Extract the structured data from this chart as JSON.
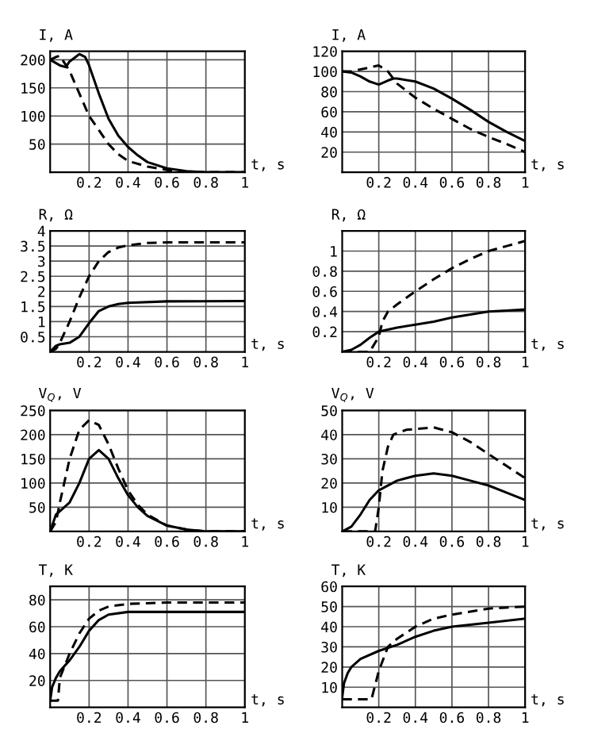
{
  "chart_data": [
    {
      "type": "line",
      "ylabel": "I, A",
      "xlabel": "t, s",
      "xlim": [
        0,
        1
      ],
      "xticks": [
        0.2,
        0.4,
        0.6,
        0.8,
        1
      ],
      "ylim": [
        0,
        215
      ],
      "yticks": [
        50,
        100,
        150,
        200
      ],
      "grid": true,
      "series": [
        {
          "color": "#000000",
          "line_style": "solid",
          "x": [
            0,
            0.05,
            0.08,
            0.1,
            0.15,
            0.18,
            0.2,
            0.25,
            0.3,
            0.35,
            0.4,
            0.45,
            0.5,
            0.6,
            0.7,
            0.8,
            1
          ],
          "values": [
            200,
            190,
            187,
            197,
            210,
            205,
            190,
            140,
            95,
            65,
            45,
            30,
            18,
            7,
            2,
            0,
            0
          ]
        },
        {
          "color": "#000000",
          "line_style": "dashed",
          "x": [
            0,
            0.03,
            0.05,
            0.1,
            0.15,
            0.2,
            0.25,
            0.3,
            0.35,
            0.4,
            0.5,
            0.6,
            0.7,
            0.8,
            1
          ],
          "values": [
            200,
            205,
            207,
            180,
            140,
            100,
            75,
            50,
            32,
            20,
            10,
            4,
            1,
            0,
            0
          ]
        }
      ]
    },
    {
      "type": "line",
      "ylabel": "I, A",
      "xlabel": "t, s",
      "xlim": [
        0,
        1
      ],
      "xticks": [
        0.2,
        0.4,
        0.6,
        0.8,
        1
      ],
      "ylim": [
        0,
        120
      ],
      "yticks": [
        20,
        40,
        60,
        80,
        100,
        120
      ],
      "grid": true,
      "series": [
        {
          "color": "#000000",
          "line_style": "solid",
          "x": [
            0,
            0.05,
            0.1,
            0.15,
            0.2,
            0.25,
            0.28,
            0.3,
            0.4,
            0.5,
            0.6,
            0.7,
            0.8,
            0.9,
            1
          ],
          "values": [
            100,
            99,
            95,
            90,
            87,
            91,
            93,
            93,
            90,
            83,
            73,
            62,
            50,
            40,
            31
          ]
        },
        {
          "color": "#000000",
          "line_style": "dashed",
          "x": [
            0,
            0.05,
            0.1,
            0.15,
            0.2,
            0.25,
            0.3,
            0.4,
            0.5,
            0.6,
            0.7,
            0.8,
            0.9,
            1
          ],
          "values": [
            100,
            100,
            102,
            104,
            106,
            100,
            88,
            74,
            63,
            53,
            43,
            35,
            28,
            20
          ]
        }
      ]
    },
    {
      "type": "line",
      "ylabel": "R, Ω",
      "xlabel": "t, s",
      "xlim": [
        0,
        1
      ],
      "xticks": [
        0.2,
        0.4,
        0.6,
        0.8,
        1
      ],
      "ylim": [
        0,
        4
      ],
      "yticks": [
        0.5,
        1,
        1.5,
        2,
        2.5,
        3,
        3.5,
        4
      ],
      "grid": true,
      "series": [
        {
          "color": "#000000",
          "line_style": "solid",
          "x": [
            0,
            0.03,
            0.05,
            0.1,
            0.15,
            0.2,
            0.25,
            0.3,
            0.35,
            0.4,
            0.6,
            1
          ],
          "values": [
            0,
            0.2,
            0.25,
            0.3,
            0.5,
            0.95,
            1.35,
            1.5,
            1.58,
            1.62,
            1.67,
            1.68
          ]
        },
        {
          "color": "#000000",
          "line_style": "dashed",
          "x": [
            0,
            0.03,
            0.05,
            0.1,
            0.15,
            0.2,
            0.25,
            0.3,
            0.35,
            0.4,
            0.5,
            0.6,
            1
          ],
          "values": [
            0,
            0.1,
            0.3,
            1.0,
            1.8,
            2.5,
            3.0,
            3.3,
            3.45,
            3.52,
            3.6,
            3.62,
            3.62
          ]
        }
      ]
    },
    {
      "type": "line",
      "ylabel": "R, Ω",
      "xlabel": "t, s",
      "xlim": [
        0,
        1
      ],
      "xticks": [
        0.2,
        0.4,
        0.6,
        0.8,
        1
      ],
      "ylim": [
        0,
        1.2
      ],
      "yticks": [
        0.2,
        0.4,
        0.6,
        0.8,
        1,
        {
          "value": 1.2,
          "label": null
        }
      ],
      "grid": true,
      "series": [
        {
          "color": "#000000",
          "line_style": "solid",
          "x": [
            0,
            0.05,
            0.1,
            0.15,
            0.2,
            0.25,
            0.3,
            0.4,
            0.5,
            0.6,
            0.7,
            0.8,
            0.9,
            1
          ],
          "values": [
            0,
            0.02,
            0.07,
            0.14,
            0.2,
            0.22,
            0.24,
            0.27,
            0.3,
            0.34,
            0.37,
            0.4,
            0.41,
            0.42
          ]
        },
        {
          "color": "#000000",
          "line_style": "dashed",
          "x": [
            0,
            0.15,
            0.2,
            0.22,
            0.25,
            0.3,
            0.4,
            0.5,
            0.6,
            0.7,
            0.8,
            0.9,
            1
          ],
          "values": [
            0,
            0,
            0.15,
            0.3,
            0.4,
            0.47,
            0.6,
            0.72,
            0.83,
            0.92,
            1.0,
            1.05,
            1.1
          ]
        }
      ]
    },
    {
      "type": "line",
      "ylabel": "V$_{Q}$, V",
      "xlabel": "t, s",
      "xlim": [
        0,
        1
      ],
      "xticks": [
        0.2,
        0.4,
        0.6,
        0.8,
        1
      ],
      "ylim": [
        0,
        250
      ],
      "yticks": [
        50,
        100,
        150,
        200,
        250
      ],
      "grid": true,
      "series": [
        {
          "color": "#000000",
          "line_style": "solid",
          "x": [
            0,
            0.03,
            0.05,
            0.1,
            0.15,
            0.2,
            0.25,
            0.3,
            0.35,
            0.4,
            0.45,
            0.5,
            0.6,
            0.7,
            0.8,
            1
          ],
          "values": [
            0,
            35,
            42,
            60,
            100,
            150,
            168,
            150,
            110,
            75,
            50,
            32,
            12,
            4,
            0,
            0
          ]
        },
        {
          "color": "#000000",
          "line_style": "dashed",
          "x": [
            0,
            0.03,
            0.05,
            0.1,
            0.15,
            0.2,
            0.25,
            0.3,
            0.35,
            0.4,
            0.45,
            0.5,
            0.6,
            0.7,
            0.8,
            1
          ],
          "values": [
            0,
            20,
            60,
            150,
            210,
            230,
            220,
            180,
            130,
            85,
            55,
            35,
            12,
            4,
            0,
            0
          ]
        }
      ]
    },
    {
      "type": "line",
      "ylabel": "V$_{Q}$, V",
      "xlabel": "t, s",
      "xlim": [
        0,
        1
      ],
      "xticks": [
        0.2,
        0.4,
        0.6,
        0.8,
        1
      ],
      "ylim": [
        0,
        50
      ],
      "yticks": [
        10,
        20,
        30,
        40,
        50
      ],
      "grid": true,
      "series": [
        {
          "color": "#000000",
          "line_style": "solid",
          "x": [
            0,
            0.05,
            0.1,
            0.15,
            0.2,
            0.3,
            0.4,
            0.5,
            0.6,
            0.7,
            0.8,
            0.9,
            1
          ],
          "values": [
            0,
            2,
            7,
            13,
            17,
            21,
            23,
            24,
            23,
            21,
            19,
            16,
            13
          ]
        },
        {
          "color": "#000000",
          "line_style": "dashed",
          "x": [
            0,
            0.18,
            0.2,
            0.22,
            0.25,
            0.28,
            0.35,
            0.5,
            0.6,
            0.7,
            0.8,
            0.9,
            1
          ],
          "values": [
            0,
            0,
            10,
            25,
            35,
            40,
            42,
            43,
            41,
            37,
            32,
            27,
            22
          ]
        }
      ]
    },
    {
      "type": "line",
      "ylabel": "T, K",
      "xlabel": "t, s",
      "xlim": [
        0,
        1
      ],
      "xticks": [
        0.2,
        0.4,
        0.6,
        0.8,
        1
      ],
      "ylim": [
        0,
        90
      ],
      "yticks": [
        20,
        40,
        60,
        80
      ],
      "grid": true,
      "series": [
        {
          "color": "#000000",
          "line_style": "solid",
          "x": [
            0,
            0.01,
            0.03,
            0.05,
            0.1,
            0.15,
            0.2,
            0.25,
            0.3,
            0.4,
            0.6,
            1
          ],
          "values": [
            5,
            15,
            22,
            27,
            35,
            45,
            57,
            65,
            69,
            71,
            71,
            71
          ]
        },
        {
          "color": "#000000",
          "line_style": "dashed",
          "x": [
            0,
            0.04,
            0.05,
            0.1,
            0.15,
            0.2,
            0.25,
            0.3,
            0.4,
            0.6,
            1
          ],
          "values": [
            5,
            5,
            22,
            40,
            55,
            66,
            72,
            75,
            77,
            78,
            78
          ]
        }
      ]
    },
    {
      "type": "line",
      "ylabel": "T, K",
      "xlabel": "t, s",
      "xlim": [
        0,
        1
      ],
      "xticks": [
        0.2,
        0.4,
        0.6,
        0.8,
        1
      ],
      "ylim": [
        0,
        60
      ],
      "yticks": [
        10,
        20,
        30,
        40,
        50,
        60
      ],
      "grid": true,
      "series": [
        {
          "color": "#000000",
          "line_style": "solid",
          "x": [
            0,
            0.01,
            0.03,
            0.05,
            0.1,
            0.2,
            0.3,
            0.4,
            0.5,
            0.6,
            0.8,
            1
          ],
          "values": [
            5,
            12,
            17,
            20,
            24,
            28,
            31,
            35,
            38,
            40,
            42,
            44
          ]
        },
        {
          "color": "#000000",
          "line_style": "dashed",
          "x": [
            0,
            0.16,
            0.2,
            0.25,
            0.3,
            0.4,
            0.5,
            0.6,
            0.8,
            1
          ],
          "values": [
            4,
            4,
            18,
            30,
            34,
            40,
            44,
            46,
            49,
            50
          ]
        }
      ]
    }
  ]
}
